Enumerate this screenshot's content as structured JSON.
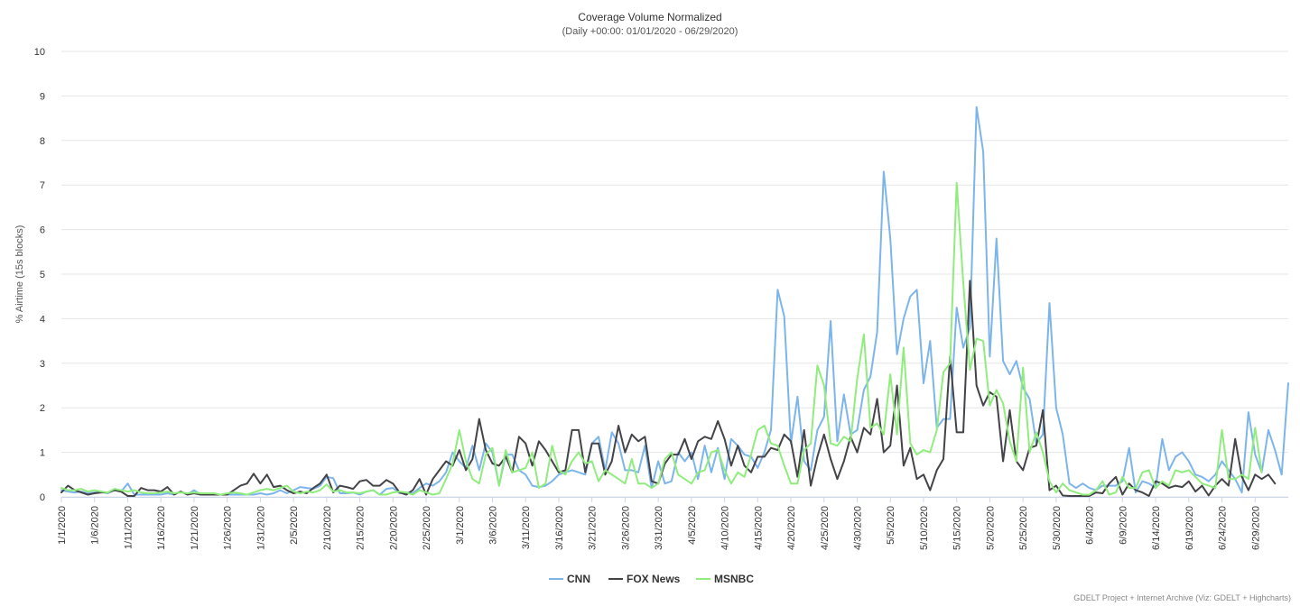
{
  "chart_data": {
    "type": "line",
    "title": "Coverage Volume Normalized",
    "subtitle": "(Daily +00:00: 01/01/2020 - 06/29/2020)",
    "ylabel": "% Airtime (15s blocks)",
    "xlabel": "",
    "ylim": [
      0,
      10
    ],
    "y_ticks": [
      "0",
      "1",
      "2",
      "3",
      "4",
      "5",
      "6",
      "7",
      "8",
      "9",
      "10"
    ],
    "x_start": "2020-01-01",
    "x_end": "2020-06-29",
    "x_ticks": [
      "1/1/2020",
      "1/6/2020",
      "1/11/2020",
      "1/16/2020",
      "1/21/2020",
      "1/26/2020",
      "1/31/2020",
      "2/5/2020",
      "2/10/2020",
      "2/15/2020",
      "2/20/2020",
      "2/25/2020",
      "3/1/2020",
      "3/6/2020",
      "3/11/2020",
      "3/16/2020",
      "3/21/2020",
      "3/26/2020",
      "3/31/2020",
      "4/5/2020",
      "4/10/2020",
      "4/15/2020",
      "4/20/2020",
      "4/25/2020",
      "4/30/2020",
      "5/5/2020",
      "5/10/2020",
      "5/15/2020",
      "5/20/2020",
      "5/25/2020",
      "5/30/2020",
      "6/4/2020",
      "6/9/2020",
      "6/14/2020",
      "6/19/2020",
      "6/24/2020",
      "6/29/2020"
    ],
    "grid": true,
    "legend_position": "bottom-center",
    "series": [
      {
        "name": "CNN",
        "color": "#7cb5ec",
        "values": [
          0.15,
          0.12,
          0.1,
          0.12,
          0.08,
          0.1,
          0.12,
          0.08,
          0.15,
          0.12,
          0.3,
          0.05,
          0.05,
          0.05,
          0.05,
          0.05,
          0.08,
          0.05,
          0.12,
          0.05,
          0.15,
          0.05,
          0.05,
          0.05,
          0.05,
          0.05,
          0.05,
          0.05,
          0.05,
          0.05,
          0.08,
          0.05,
          0.08,
          0.15,
          0.08,
          0.15,
          0.22,
          0.2,
          0.18,
          0.25,
          0.45,
          0.42,
          0.08,
          0.08,
          0.1,
          0.05,
          0.12,
          0.15,
          0.05,
          0.18,
          0.2,
          0.08,
          0.1,
          0.08,
          0.2,
          0.3,
          0.25,
          0.35,
          0.55,
          1.0,
          0.8,
          0.65,
          1.15,
          0.6,
          1.2,
          1.0,
          0.25,
          0.95,
          0.95,
          0.6,
          0.5,
          0.25,
          0.22,
          0.25,
          0.35,
          0.5,
          0.55,
          0.6,
          0.55,
          0.5,
          1.2,
          1.35,
          0.6,
          1.45,
          1.2,
          0.6,
          0.6,
          0.55,
          1.15,
          0.2,
          0.8,
          0.3,
          0.35,
          1.0,
          0.8,
          1.0,
          0.4,
          1.15,
          0.55,
          1.1,
          0.4,
          1.3,
          1.15,
          0.95,
          0.9,
          0.65,
          1.0,
          1.5,
          4.65,
          4.05,
          1.2,
          2.25,
          0.8,
          0.6,
          1.5,
          1.8,
          3.95,
          1.25,
          2.3,
          1.4,
          1.5,
          2.4,
          2.7,
          3.7,
          7.3,
          5.8,
          3.2,
          4.0,
          4.5,
          4.65,
          2.55,
          3.5,
          1.55,
          1.75,
          1.75,
          4.25,
          3.35,
          3.8,
          8.75,
          7.75,
          3.15,
          5.8,
          3.05,
          2.75,
          3.05,
          2.45,
          2.2,
          1.2,
          1.4,
          4.35,
          2.0,
          1.4,
          0.3,
          0.2,
          0.3,
          0.2,
          0.15,
          0.25,
          0.25,
          0.25,
          0.35,
          1.1,
          0.1,
          0.35,
          0.3,
          0.2,
          1.3,
          0.6,
          0.9,
          1.0,
          0.8,
          0.5,
          0.45,
          0.35,
          0.5,
          0.8,
          0.6,
          0.4,
          0.1,
          1.9,
          0.95,
          0.55,
          1.5,
          1.05,
          0.5,
          2.55
        ]
      },
      {
        "name": "FOX News",
        "color": "#434348",
        "values": [
          0.1,
          0.25,
          0.15,
          0.1,
          0.05,
          0.08,
          0.1,
          0.1,
          0.15,
          0.12,
          0.02,
          0.02,
          0.2,
          0.15,
          0.15,
          0.12,
          0.22,
          0.05,
          0.12,
          0.05,
          0.08,
          0.05,
          0.05,
          0.05,
          0.05,
          0.05,
          0.15,
          0.25,
          0.3,
          0.52,
          0.3,
          0.5,
          0.22,
          0.25,
          0.15,
          0.08,
          0.12,
          0.08,
          0.2,
          0.3,
          0.5,
          0.1,
          0.25,
          0.22,
          0.18,
          0.35,
          0.38,
          0.25,
          0.25,
          0.38,
          0.3,
          0.1,
          0.05,
          0.15,
          0.4,
          0.05,
          0.4,
          0.6,
          0.8,
          0.7,
          1.05,
          0.6,
          0.85,
          1.75,
          1.05,
          0.75,
          0.7,
          0.9,
          0.55,
          1.35,
          1.2,
          0.7,
          1.25,
          1.05,
          0.8,
          0.55,
          0.6,
          1.5,
          1.5,
          0.55,
          1.2,
          1.2,
          0.5,
          0.8,
          1.6,
          1.0,
          1.4,
          1.25,
          1.35,
          0.35,
          0.3,
          0.75,
          0.95,
          0.95,
          1.3,
          0.85,
          1.25,
          1.35,
          1.3,
          1.7,
          1.3,
          0.7,
          1.15,
          0.7,
          0.55,
          0.9,
          0.9,
          1.1,
          1.05,
          1.4,
          1.25,
          0.45,
          1.5,
          0.25,
          0.9,
          1.4,
          0.85,
          0.4,
          0.8,
          1.35,
          1.0,
          1.55,
          1.4,
          2.2,
          1.0,
          1.15,
          2.5,
          0.7,
          1.1,
          0.4,
          0.5,
          0.15,
          0.6,
          0.85,
          3.15,
          1.45,
          1.45,
          4.85,
          2.5,
          2.05,
          2.35,
          2.25,
          0.8,
          1.95,
          0.8,
          0.6,
          1.1,
          1.15,
          1.95,
          0.15,
          0.25,
          0.03,
          0.02,
          0.02,
          0.02,
          0.02,
          0.1,
          0.08,
          0.3,
          0.45,
          0.05,
          0.3,
          0.15,
          0.1,
          0.02,
          0.35,
          0.3,
          0.2,
          0.25,
          0.22,
          0.35,
          0.12,
          0.25,
          0.03,
          0.25,
          0.4,
          0.25,
          1.3,
          0.45,
          0.15,
          0.5,
          0.4,
          0.5,
          0.3
        ]
      },
      {
        "name": "MSNBC",
        "color": "#90ed7d",
        "values": [
          0.2,
          0.15,
          0.15,
          0.18,
          0.12,
          0.15,
          0.12,
          0.1,
          0.18,
          0.15,
          0.12,
          0.15,
          0.1,
          0.08,
          0.08,
          0.1,
          0.12,
          0.08,
          0.1,
          0.08,
          0.1,
          0.08,
          0.08,
          0.08,
          0.05,
          0.08,
          0.1,
          0.08,
          0.05,
          0.1,
          0.15,
          0.18,
          0.15,
          0.2,
          0.25,
          0.12,
          0.08,
          0.12,
          0.1,
          0.15,
          0.28,
          0.12,
          0.15,
          0.1,
          0.1,
          0.08,
          0.12,
          0.15,
          0.05,
          0.05,
          0.1,
          0.12,
          0.1,
          0.05,
          0.15,
          0.1,
          0.05,
          0.08,
          0.4,
          0.75,
          1.5,
          0.8,
          0.4,
          0.3,
          0.95,
          1.1,
          0.25,
          1.05,
          0.55,
          0.6,
          0.65,
          1.0,
          0.2,
          0.3,
          1.15,
          0.6,
          0.5,
          0.8,
          1.0,
          0.75,
          0.8,
          0.35,
          0.6,
          0.5,
          0.4,
          0.3,
          0.85,
          0.3,
          0.3,
          0.2,
          0.3,
          0.85,
          1.0,
          0.5,
          0.4,
          0.3,
          0.55,
          0.6,
          1.0,
          1.05,
          0.6,
          0.3,
          0.55,
          0.45,
          0.95,
          1.5,
          1.6,
          1.2,
          1.15,
          0.7,
          0.3,
          0.3,
          1.05,
          1.2,
          2.95,
          2.5,
          1.2,
          1.15,
          1.35,
          1.25,
          2.65,
          3.65,
          1.55,
          1.65,
          1.4,
          2.75,
          1.4,
          3.35,
          1.2,
          0.95,
          1.05,
          1.0,
          1.5,
          2.8,
          3.0,
          7.05,
          4.8,
          2.85,
          3.55,
          3.5,
          2.05,
          2.4,
          2.1,
          1.25,
          0.8,
          2.9,
          1.0,
          1.45,
          1.0,
          0.35,
          0.1,
          0.3,
          0.15,
          0.1,
          0.05,
          0.05,
          0.15,
          0.35,
          0.05,
          0.1,
          0.45,
          0.2,
          0.2,
          0.55,
          0.6,
          0.2,
          0.35,
          0.25,
          0.6,
          0.55,
          0.6,
          0.45,
          0.3,
          0.25,
          0.2,
          1.5,
          0.4,
          0.4,
          0.5,
          0.4,
          1.55,
          0.55
        ]
      }
    ],
    "credits": "GDELT Project + Internet Archive (Viz: GDELT + Highcharts)"
  }
}
